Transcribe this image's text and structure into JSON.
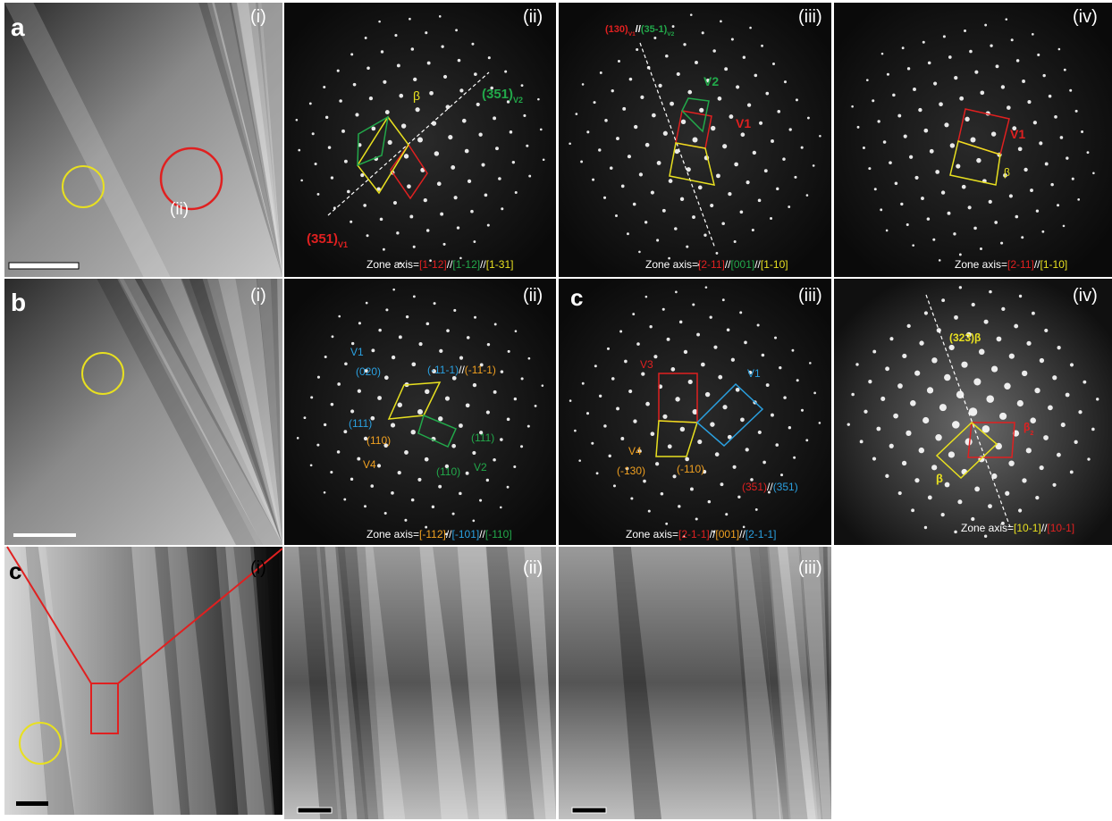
{
  "panels": [
    {
      "notes": [
        {
          "parts": [
            {
              "text": "a",
              "color": "#ffffff"
            }
          ]
        },
        {
          "parts": [
            {
              "text": "(i)",
              "color": "#ffffff"
            }
          ]
        },
        {
          "parts": [
            {
              "text": "(ii)",
              "color": "#ffffff"
            }
          ]
        }
      ]
    },
    {
      "notes": [
        {
          "parts": [
            {
              "text": "(ii)",
              "color": "#ffffff"
            }
          ]
        },
        {
          "parts": [
            {
              "text": "β",
              "color": "#e8e020"
            }
          ]
        },
        {
          "parts": [
            {
              "text": "(351)",
              "color": "#22a84a"
            },
            {
              "text": "V2",
              "color": "#22a84a",
              "sub": true
            }
          ]
        },
        {
          "parts": [
            {
              "text": "(351)",
              "color": "#e02020"
            },
            {
              "text": "V1",
              "color": "#e02020",
              "sub": true
            }
          ]
        },
        {
          "parts": [
            {
              "text": "Zone axis=",
              "color": "#ffffff"
            },
            {
              "text": "[1-12]",
              "color": "#e02020"
            },
            {
              "text": "//",
              "color": "#ffffff"
            },
            {
              "text": "[1-12]",
              "color": "#22a84a"
            },
            {
              "text": "//",
              "color": "#ffffff"
            },
            {
              "text": "[1-31]",
              "color": "#e8e020"
            }
          ]
        }
      ]
    },
    {
      "notes": [
        {
          "parts": [
            {
              "text": "(iii)",
              "color": "#ffffff"
            }
          ]
        },
        {
          "parts": [
            {
              "text": "(130)",
              "color": "#e02020"
            },
            {
              "text": "V1",
              "color": "#e02020",
              "sub": true
            },
            {
              "text": "//",
              "color": "#ffffff"
            },
            {
              "text": "(35-1)",
              "color": "#22a84a"
            },
            {
              "text": "V2",
              "color": "#22a84a",
              "sub": true
            }
          ]
        },
        {
          "parts": [
            {
              "text": "V2",
              "color": "#22a84a"
            }
          ]
        },
        {
          "parts": [
            {
              "text": "V1",
              "color": "#e02020"
            }
          ]
        },
        {
          "parts": [
            {
              "text": "Zone axis=",
              "color": "#ffffff"
            },
            {
              "text": "[2-11]",
              "color": "#e02020"
            },
            {
              "text": "//",
              "color": "#ffffff"
            },
            {
              "text": "[001]",
              "color": "#22a84a"
            },
            {
              "text": "//",
              "color": "#ffffff"
            },
            {
              "text": "[1-10]",
              "color": "#e8e020"
            }
          ]
        }
      ]
    },
    {
      "notes": [
        {
          "parts": [
            {
              "text": "(iv)",
              "color": "#ffffff"
            }
          ]
        },
        {
          "parts": [
            {
              "text": "V1",
              "color": "#e02020"
            }
          ]
        },
        {
          "parts": [
            {
              "text": "β",
              "color": "#e8e020"
            }
          ]
        },
        {
          "parts": [
            {
              "text": "Zone axis=",
              "color": "#ffffff"
            },
            {
              "text": "[2-11]",
              "color": "#e02020"
            },
            {
              "text": "//",
              "color": "#ffffff"
            },
            {
              "text": "[1-10]",
              "color": "#e8e020"
            }
          ]
        }
      ]
    },
    {
      "notes": [
        {
          "parts": [
            {
              "text": "b",
              "color": "#ffffff"
            }
          ]
        },
        {
          "parts": [
            {
              "text": "(i)",
              "color": "#ffffff"
            }
          ]
        }
      ]
    },
    {
      "notes": [
        {
          "parts": [
            {
              "text": "(ii)",
              "color": "#ffffff"
            }
          ]
        },
        {
          "parts": [
            {
              "text": "V1",
              "color": "#2aa0e0"
            }
          ]
        },
        {
          "parts": [
            {
              "text": "(020)",
              "color": "#2aa0e0"
            }
          ]
        },
        {
          "parts": [
            {
              "text": "(-11-1)",
              "color": "#2aa0e0"
            },
            {
              "text": "//",
              "color": "#ffffff"
            },
            {
              "text": "(-11-1)",
              "color": "#f0a020"
            }
          ]
        },
        {
          "parts": [
            {
              "text": "(111)",
              "color": "#2aa0e0"
            }
          ]
        },
        {
          "parts": [
            {
              "text": "(110)",
              "color": "#f0a020"
            }
          ]
        },
        {
          "parts": [
            {
              "text": "(111)",
              "color": "#22a84a"
            }
          ]
        },
        {
          "parts": [
            {
              "text": "V4",
              "color": "#f0a020"
            }
          ]
        },
        {
          "parts": [
            {
              "text": "(110)",
              "color": "#22a84a"
            }
          ]
        },
        {
          "parts": [
            {
              "text": "V2",
              "color": "#22a84a"
            }
          ]
        },
        {
          "parts": [
            {
              "text": "Zone axis=",
              "color": "#ffffff"
            },
            {
              "text": "[-112]",
              "color": "#f0a020"
            },
            {
              "text": "//",
              "color": "#ffffff"
            },
            {
              "text": "[-101]",
              "color": "#2aa0e0"
            },
            {
              "text": "//",
              "color": "#ffffff"
            },
            {
              "text": "[-110]",
              "color": "#22a84a"
            }
          ]
        }
      ]
    },
    {
      "notes": [
        {
          "parts": [
            {
              "text": "c",
              "color": "#ffffff"
            }
          ]
        },
        {
          "parts": [
            {
              "text": "(iii)",
              "color": "#ffffff"
            }
          ]
        },
        {
          "parts": [
            {
              "text": "V3",
              "color": "#e02020"
            }
          ]
        },
        {
          "parts": [
            {
              "text": "V1",
              "color": "#2aa0e0"
            }
          ]
        },
        {
          "parts": [
            {
              "text": "V4",
              "color": "#f0a020"
            }
          ]
        },
        {
          "parts": [
            {
              "text": "(-130)",
              "color": "#f0a020"
            }
          ]
        },
        {
          "parts": [
            {
              "text": "(-110)",
              "color": "#f0a020"
            }
          ]
        },
        {
          "parts": [
            {
              "text": "(351)",
              "color": "#e02020"
            },
            {
              "text": "//",
              "color": "#ffffff"
            },
            {
              "text": "(351)",
              "color": "#2aa0e0"
            }
          ]
        },
        {
          "parts": [
            {
              "text": "Zone axis=",
              "color": "#ffffff"
            },
            {
              "text": "[2-1-1]",
              "color": "#e02020"
            },
            {
              "text": "//",
              "color": "#ffffff"
            },
            {
              "text": "[001]",
              "color": "#f0a020"
            },
            {
              "text": "//",
              "color": "#ffffff"
            },
            {
              "text": "[2-1-1]",
              "color": "#2aa0e0"
            }
          ]
        }
      ]
    },
    {
      "notes": [
        {
          "parts": [
            {
              "text": "(iv)",
              "color": "#ffffff"
            }
          ]
        },
        {
          "parts": [
            {
              "text": "(323)β",
              "color": "#e8e020"
            }
          ]
        },
        {
          "parts": [
            {
              "text": "β",
              "color": "#e02020"
            },
            {
              "text": "2",
              "color": "#e02020",
              "sub": true
            }
          ]
        },
        {
          "parts": [
            {
              "text": "β",
              "color": "#e8e020"
            }
          ]
        },
        {
          "parts": [
            {
              "text": "Zone axis=",
              "color": "#ffffff"
            },
            {
              "text": "[10-1]",
              "color": "#e8e020"
            },
            {
              "text": "//",
              "color": "#ffffff"
            },
            {
              "text": "[10-1]",
              "color": "#e02020"
            }
          ]
        }
      ]
    },
    {
      "notes": [
        {
          "parts": [
            {
              "text": "c",
              "color": "#000000"
            }
          ]
        },
        {
          "parts": [
            {
              "text": "(i)",
              "color": "#000000"
            }
          ]
        }
      ]
    },
    {
      "notes": [
        {
          "parts": [
            {
              "text": "(ii)",
              "color": "#ffffff"
            }
          ]
        }
      ]
    },
    {
      "notes": [
        {
          "parts": [
            {
              "text": "(iii)",
              "color": "#ffffff"
            }
          ]
        }
      ]
    }
  ]
}
